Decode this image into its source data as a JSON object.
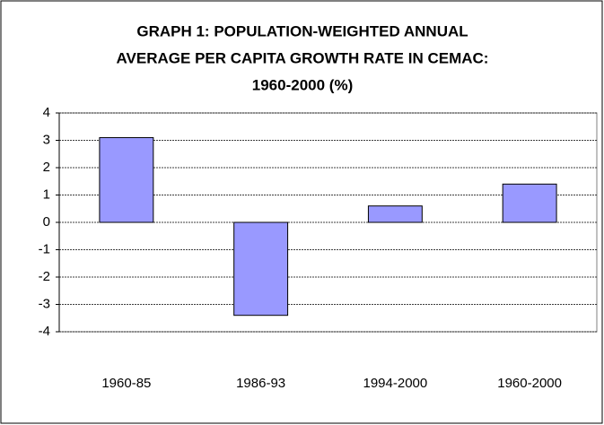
{
  "chart_data": {
    "type": "bar",
    "title": [
      "GRAPH 1: POPULATION-WEIGHTED ANNUAL",
      "AVERAGE PER CAPITA GROWTH RATE IN CEMAC:",
      "1960-2000 (%)"
    ],
    "categories": [
      "1960-85",
      "1986-93",
      "1994-2000",
      "1960-2000"
    ],
    "values": [
      3.1,
      -3.4,
      0.6,
      1.4
    ],
    "color": "#9999ff",
    "ylim": [
      -4,
      4
    ],
    "yticks": [
      -4,
      -3,
      -2,
      -1,
      0,
      1,
      2,
      3,
      4
    ],
    "grid": true
  }
}
